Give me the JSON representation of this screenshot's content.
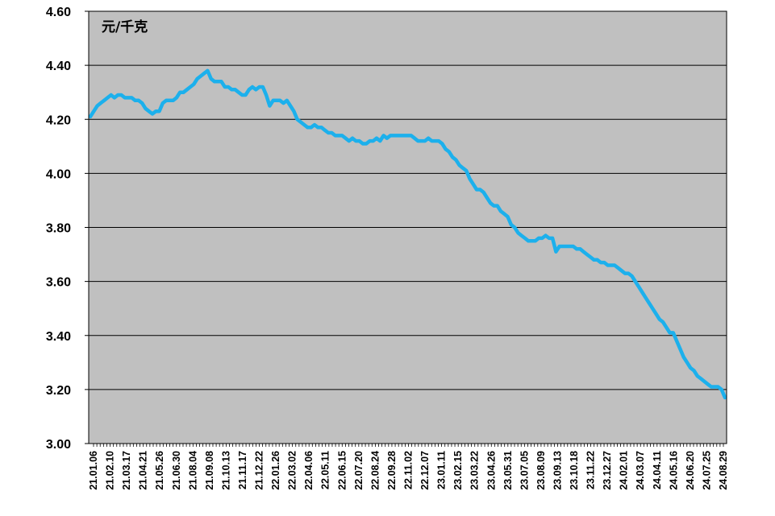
{
  "chart_data": {
    "type": "line",
    "unit_label": "元/千克",
    "ylim": [
      3.0,
      4.6
    ],
    "yticks": [
      "3.00",
      "3.20",
      "3.40",
      "3.60",
      "3.80",
      "4.00",
      "4.20",
      "4.40",
      "4.60"
    ],
    "grid": "horizontal",
    "line_color": "#1cb0ec",
    "plot_bg": "#c0c0c0",
    "x_tick_labels": [
      "21.01.06",
      "21.02.10",
      "21.03.17",
      "21.04.21",
      "21.05.26",
      "21.06.30",
      "21.08.04",
      "21.09.08",
      "21.10.13",
      "21.11.17",
      "21.12.22",
      "22.01.26",
      "22.03.02",
      "22.04.06",
      "22.05.11",
      "22.06.15",
      "22.07.20",
      "22.08.24",
      "22.09.28",
      "22.11.02",
      "22.12.07",
      "23.01.11",
      "23.02.15",
      "23.03.22",
      "23.04.26",
      "23.05.31",
      "23.07.05",
      "23.08.09",
      "23.09.13",
      "23.10.18",
      "23.11.22",
      "23.12.27",
      "24.02.01",
      "24.03.07",
      "24.04.11",
      "24.05.16",
      "24.06.20",
      "24.07.25",
      "24.08.29"
    ],
    "series": [
      {
        "values": [
          4.21,
          4.23,
          4.25,
          4.26,
          4.27,
          4.28,
          4.29,
          4.28,
          4.29,
          4.29,
          4.28,
          4.28,
          4.28,
          4.27,
          4.27,
          4.26,
          4.24,
          4.23,
          4.22,
          4.23,
          4.23,
          4.26,
          4.27,
          4.27,
          4.27,
          4.28,
          4.3,
          4.3,
          4.31,
          4.32,
          4.33,
          4.35,
          4.36,
          4.37,
          4.38,
          4.35,
          4.34,
          4.34,
          4.34,
          4.32,
          4.32,
          4.31,
          4.31,
          4.3,
          4.29,
          4.29,
          4.31,
          4.32,
          4.31,
          4.32,
          4.32,
          4.29,
          4.25,
          4.27,
          4.27,
          4.27,
          4.26,
          4.27,
          4.25,
          4.23,
          4.2,
          4.19,
          4.18,
          4.17,
          4.17,
          4.18,
          4.17,
          4.17,
          4.16,
          4.15,
          4.15,
          4.14,
          4.14,
          4.14,
          4.13,
          4.12,
          4.13,
          4.12,
          4.12,
          4.11,
          4.11,
          4.12,
          4.12,
          4.13,
          4.12,
          4.14,
          4.13,
          4.14,
          4.14,
          4.14,
          4.14,
          4.14,
          4.14,
          4.14,
          4.13,
          4.12,
          4.12,
          4.12,
          4.13,
          4.12,
          4.12,
          4.12,
          4.11,
          4.09,
          4.08,
          4.06,
          4.05,
          4.03,
          4.02,
          4.01,
          3.98,
          3.96,
          3.94,
          3.94,
          3.93,
          3.91,
          3.89,
          3.88,
          3.88,
          3.86,
          3.85,
          3.84,
          3.81,
          3.8,
          3.78,
          3.77,
          3.76,
          3.75,
          3.75,
          3.75,
          3.76,
          3.76,
          3.77,
          3.76,
          3.76,
          3.71,
          3.73,
          3.73,
          3.73,
          3.73,
          3.73,
          3.72,
          3.72,
          3.71,
          3.7,
          3.69,
          3.68,
          3.68,
          3.67,
          3.67,
          3.66,
          3.66,
          3.66,
          3.65,
          3.64,
          3.63,
          3.63,
          3.62,
          3.6,
          3.58,
          3.56,
          3.54,
          3.52,
          3.5,
          3.48,
          3.46,
          3.45,
          3.43,
          3.41,
          3.41,
          3.38,
          3.35,
          3.32,
          3.3,
          3.28,
          3.27,
          3.25,
          3.24,
          3.23,
          3.22,
          3.21,
          3.21,
          3.21,
          3.2,
          3.17
        ]
      }
    ]
  }
}
